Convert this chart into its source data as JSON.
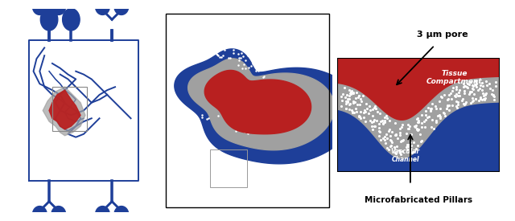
{
  "bg_color": "#ffffff",
  "blue_color": "#1e3f99",
  "red_color": "#b82020",
  "gray_color": "#a0a0a0",
  "tissue_label": "Tissue\nCompartment",
  "vascular_label": "Vascular\nChannel",
  "pillars_label": "Microfabricated Pillars",
  "pore_label": "3 μm pore",
  "panel1_xlim": [
    0,
    10
  ],
  "panel1_ylim": [
    0,
    13
  ],
  "panel2_xlim": [
    0,
    10
  ],
  "panel2_ylim": [
    0,
    12
  ],
  "panel3_xlim": [
    0,
    10
  ],
  "panel3_ylim": [
    0,
    7
  ]
}
